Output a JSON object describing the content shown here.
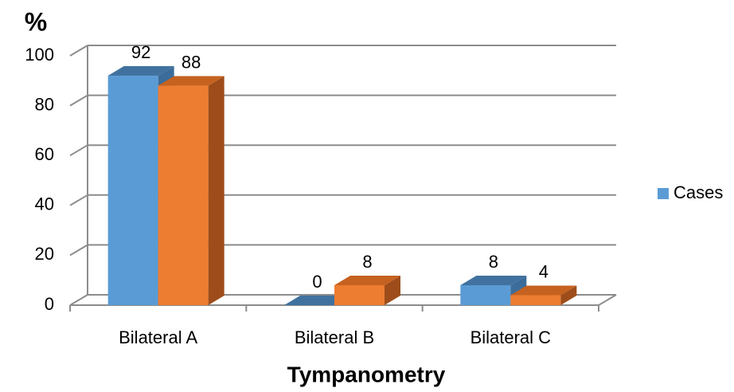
{
  "chart_data": {
    "type": "bar3d",
    "y_label": "%",
    "x_label": "Tympanometry",
    "categories": [
      "Bilateral A",
      "Bilateral B",
      "Bilateral C"
    ],
    "series": [
      {
        "name": "Cases",
        "color": "#5b9bd5",
        "top_color": "#41729f",
        "side_color": "#3c6d9a",
        "values": [
          92,
          0,
          8
        ]
      },
      {
        "color": "#ed7d31",
        "top_color": "#c5621f",
        "side_color": "#9e4d1a",
        "values": [
          88,
          8,
          4
        ]
      }
    ],
    "ylim": [
      0,
      100
    ],
    "yticks": [
      0,
      20,
      40,
      60,
      80,
      100
    ],
    "grid": true,
    "legend": "right"
  }
}
